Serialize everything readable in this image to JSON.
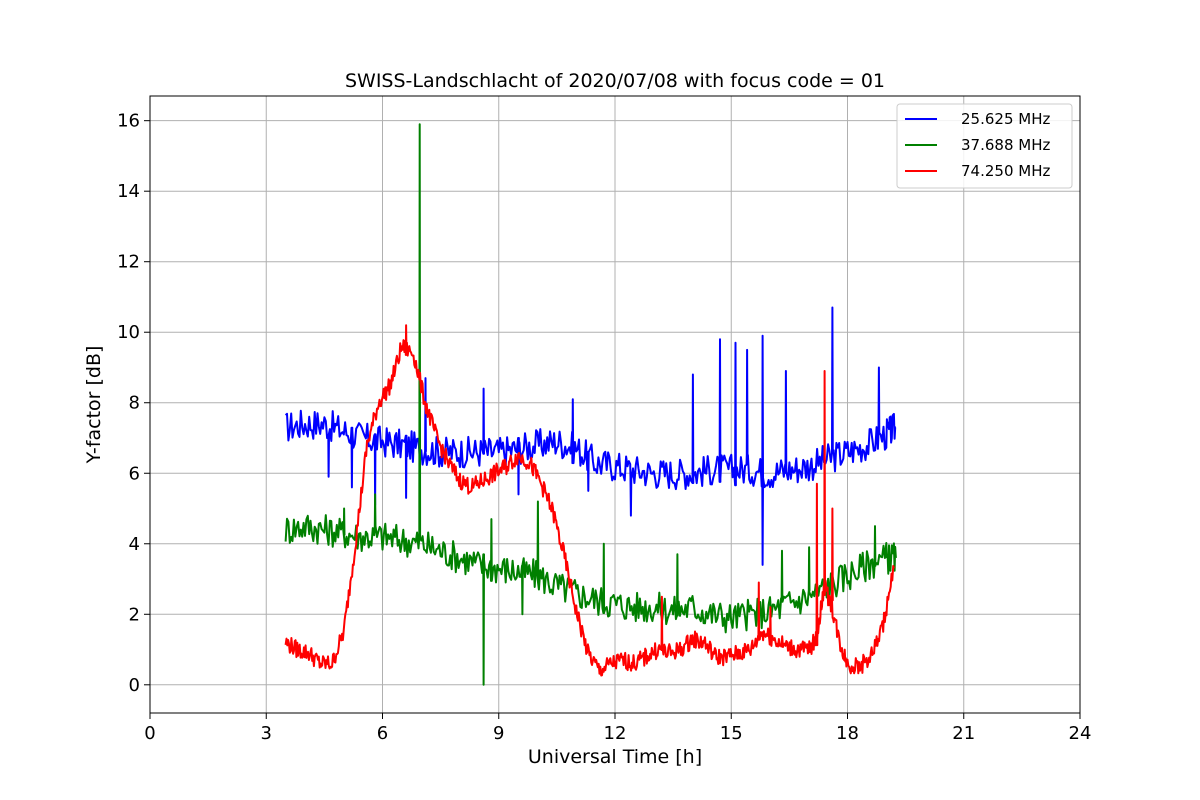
{
  "chart_data": {
    "type": "line",
    "title": "SWISS-Landschlacht of 2020/07/08 with focus code = 01",
    "xlabel": "Universal Time [h]",
    "ylabel": "Y-factor [dB]",
    "xlim": [
      0,
      24
    ],
    "ylim": [
      -0.8,
      16.7
    ],
    "xticks": [
      0,
      3,
      6,
      9,
      12,
      15,
      18,
      21,
      24
    ],
    "yticks": [
      0,
      2,
      4,
      6,
      8,
      10,
      12,
      14,
      16
    ],
    "grid": true,
    "legend_position": "top-right",
    "series": [
      {
        "name": "25.625 MHz",
        "color": "#0000ff",
        "x": [
          3.5,
          4.0,
          4.5,
          5.0,
          5.5,
          6.0,
          6.5,
          7.0,
          7.5,
          8.0,
          8.5,
          9.0,
          9.5,
          10.0,
          10.5,
          11.0,
          11.5,
          12.0,
          12.5,
          13.0,
          13.5,
          14.0,
          14.5,
          15.0,
          15.5,
          16.0,
          16.5,
          17.0,
          17.5,
          18.0,
          18.5,
          19.0,
          19.25
        ],
        "y": [
          7.3,
          7.4,
          7.4,
          7.2,
          7.0,
          6.9,
          6.8,
          6.7,
          6.6,
          6.6,
          6.6,
          6.6,
          6.7,
          6.8,
          6.9,
          6.7,
          6.3,
          6.2,
          6.1,
          6.0,
          6.0,
          6.0,
          6.1,
          6.1,
          6.1,
          6.0,
          6.1,
          6.2,
          6.4,
          6.6,
          6.8,
          7.1,
          7.3
        ],
        "spikes": [
          [
            4.6,
            5.9
          ],
          [
            5.2,
            5.6
          ],
          [
            5.8,
            5.1
          ],
          [
            6.6,
            5.3
          ],
          [
            7.1,
            8.7
          ],
          [
            8.6,
            8.4
          ],
          [
            9.5,
            5.4
          ],
          [
            10.9,
            8.1
          ],
          [
            11.3,
            5.5
          ],
          [
            12.4,
            4.8
          ],
          [
            14.0,
            8.8
          ],
          [
            14.7,
            9.8
          ],
          [
            15.1,
            9.7
          ],
          [
            15.4,
            9.5
          ],
          [
            15.8,
            9.9
          ],
          [
            15.8,
            3.4
          ],
          [
            16.4,
            8.9
          ],
          [
            17.6,
            10.7
          ],
          [
            18.8,
            9.0
          ]
        ]
      },
      {
        "name": "37.688 MHz",
        "color": "#008000",
        "x": [
          3.5,
          4.0,
          4.5,
          5.0,
          5.5,
          6.0,
          6.5,
          7.0,
          7.5,
          8.0,
          8.5,
          9.0,
          9.5,
          10.0,
          10.5,
          11.0,
          11.5,
          12.0,
          12.5,
          13.0,
          13.5,
          14.0,
          14.5,
          15.0,
          15.5,
          16.0,
          16.5,
          17.0,
          17.5,
          18.0,
          18.5,
          19.0,
          19.25
        ],
        "y": [
          4.4,
          4.5,
          4.4,
          4.3,
          4.2,
          4.2,
          4.1,
          4.0,
          3.8,
          3.6,
          3.4,
          3.3,
          3.2,
          3.1,
          2.8,
          2.6,
          2.4,
          2.3,
          2.2,
          2.2,
          2.1,
          2.2,
          2.0,
          1.9,
          2.0,
          2.1,
          2.3,
          2.5,
          2.8,
          3.1,
          3.4,
          3.6,
          3.6
        ],
        "spikes": [
          [
            3.5,
            5.5
          ],
          [
            5.0,
            5.0
          ],
          [
            5.8,
            5.4
          ],
          [
            6.95,
            15.9
          ],
          [
            6.95,
            4.5
          ],
          [
            8.6,
            0.0
          ],
          [
            8.8,
            4.7
          ],
          [
            9.6,
            2.0
          ],
          [
            10.0,
            5.2
          ],
          [
            11.7,
            4.0
          ],
          [
            13.6,
            3.7
          ],
          [
            16.3,
            3.8
          ],
          [
            17.0,
            3.9
          ],
          [
            18.7,
            4.5
          ]
        ]
      },
      {
        "name": "74.250 MHz",
        "color": "#ff0000",
        "x": [
          3.5,
          3.8,
          4.1,
          4.4,
          4.7,
          5.0,
          5.3,
          5.6,
          5.9,
          6.2,
          6.5,
          6.8,
          7.1,
          7.4,
          7.7,
          8.0,
          8.3,
          8.6,
          8.9,
          9.2,
          9.5,
          9.8,
          10.1,
          10.4,
          10.7,
          11.0,
          11.3,
          11.6,
          11.9,
          12.2,
          12.5,
          12.8,
          13.1,
          13.4,
          13.7,
          14.0,
          14.3,
          14.6,
          14.9,
          15.2,
          15.5,
          15.8,
          16.1,
          16.4,
          16.7,
          17.0,
          17.2,
          17.4,
          17.6,
          17.8,
          18.0,
          18.3,
          18.6,
          18.9,
          19.2
        ],
        "y": [
          1.2,
          1.0,
          0.9,
          0.6,
          0.6,
          1.5,
          4.0,
          6.8,
          8.0,
          8.5,
          9.6,
          9.4,
          8.0,
          7.0,
          6.3,
          5.8,
          5.6,
          5.8,
          6.0,
          6.2,
          6.5,
          6.3,
          5.7,
          4.9,
          3.6,
          2.1,
          0.9,
          0.4,
          0.6,
          0.7,
          0.6,
          0.8,
          1.0,
          0.9,
          1.0,
          1.3,
          1.2,
          0.8,
          0.8,
          0.9,
          1.0,
          1.5,
          1.3,
          1.1,
          1.0,
          1.0,
          1.3,
          2.8,
          2.2,
          1.2,
          0.6,
          0.5,
          0.8,
          1.6,
          3.3
        ],
        "spikes": [
          [
            6.6,
            10.2
          ],
          [
            17.4,
            8.9
          ],
          [
            17.2,
            5.7
          ],
          [
            17.6,
            5.0
          ],
          [
            15.7,
            2.9
          ],
          [
            16.0,
            2.2
          ],
          [
            13.2,
            2.5
          ]
        ]
      }
    ]
  }
}
